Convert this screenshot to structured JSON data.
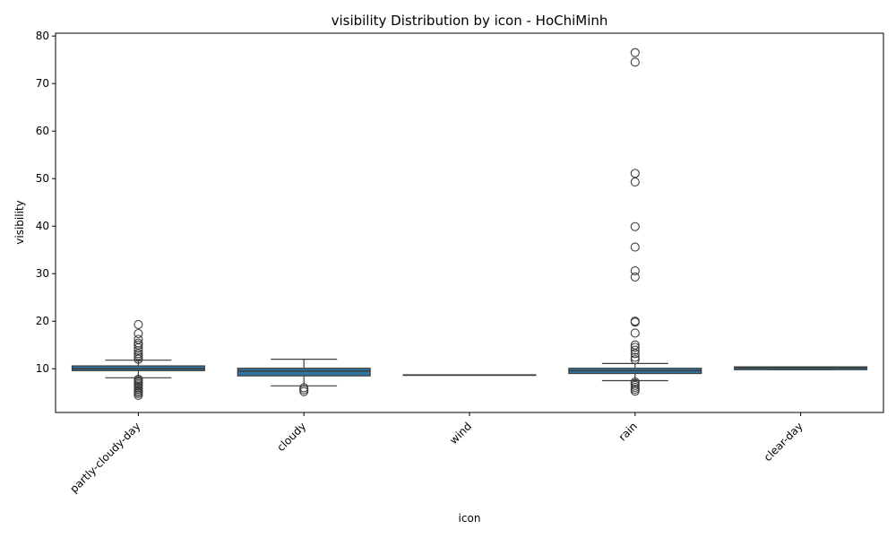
{
  "chart_data": {
    "type": "box",
    "title": "visibility Distribution by icon - HoChiMinh",
    "xlabel": "icon",
    "ylabel": "visibility",
    "ylim": [
      0.8,
      80.6
    ],
    "yticks": [
      10,
      20,
      30,
      40,
      50,
      60,
      70,
      80
    ],
    "grid": false,
    "box_color": "#3274a1",
    "edge_color": "#3d3d3d",
    "categories": [
      "partly-cloudy-day",
      "cloudy",
      "wind",
      "rain",
      "clear-day"
    ],
    "boxes": [
      {
        "category": "partly-cloudy-day",
        "whisker_low": 8.1,
        "q1": 9.6,
        "median": 10.0,
        "q3": 10.6,
        "whisker_high": 11.8,
        "outliers": [
          4.4,
          4.8,
          5.1,
          5.4,
          5.7,
          6.0,
          6.3,
          6.6,
          6.9,
          7.2,
          7.5,
          7.8,
          12.0,
          12.4,
          12.8,
          13.2,
          13.8,
          14.4,
          15.0,
          15.4,
          16.2,
          17.4,
          19.3
        ]
      },
      {
        "category": "cloudy",
        "whisker_low": 6.4,
        "q1": 8.5,
        "median": 9.5,
        "q3": 10.1,
        "whisker_high": 12.0,
        "outliers": [
          5.2,
          5.6,
          6.0
        ]
      },
      {
        "category": "wind",
        "whisker_low": 8.7,
        "q1": 8.7,
        "median": 8.7,
        "q3": 8.7,
        "whisker_high": 8.7,
        "outliers": []
      },
      {
        "category": "rain",
        "whisker_low": 7.5,
        "q1": 9.0,
        "median": 9.6,
        "q3": 10.1,
        "whisker_high": 11.1,
        "outliers": [
          5.3,
          5.7,
          6.1,
          6.5,
          6.9,
          7.2,
          11.9,
          12.4,
          13.2,
          13.9,
          14.5,
          15.0,
          17.5,
          19.8,
          20.0,
          29.3,
          30.6,
          35.6,
          39.9,
          49.3,
          51.1,
          74.5,
          76.5
        ]
      },
      {
        "category": "clear-day",
        "whisker_low": 9.8,
        "q1": 9.8,
        "median": 10.2,
        "q3": 10.4,
        "whisker_high": 10.4,
        "outliers": []
      }
    ]
  }
}
